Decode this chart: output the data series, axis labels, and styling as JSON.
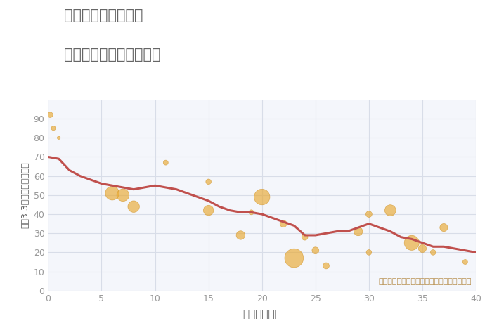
{
  "title_line1": "兵庫県赤穂市尾崎の",
  "title_line2": "築年数別中古戸建て価格",
  "xlabel": "築年数（年）",
  "ylabel": "坪（3.3㎡）単価（万円）",
  "background_color": "#ffffff",
  "plot_bg_color": "#f4f6fb",
  "grid_color": "#d8dde8",
  "title_color": "#666666",
  "annotation_text": "円の大きさは、取引のあった物件面積を示す",
  "annotation_color": "#b89050",
  "xlim": [
    0,
    40
  ],
  "ylim": [
    0,
    100
  ],
  "xticks": [
    0,
    5,
    10,
    15,
    20,
    25,
    30,
    35,
    40
  ],
  "yticks": [
    0,
    10,
    20,
    30,
    40,
    50,
    60,
    70,
    80,
    90
  ],
  "line_color": "#c0504d",
  "line_width": 2.2,
  "bubble_color": "#e8a830",
  "bubble_alpha": 0.65,
  "bubble_edge_color": "#d09020",
  "scatter_x": [
    0.2,
    0.5,
    1.0,
    6,
    7,
    8,
    11,
    15,
    15,
    18,
    19,
    20,
    22,
    23,
    24,
    25,
    26,
    29,
    30,
    30,
    32,
    34,
    35,
    36,
    37,
    39
  ],
  "scatter_y": [
    92,
    85,
    80,
    51,
    50,
    44,
    67,
    57,
    42,
    29,
    41,
    49,
    35,
    17,
    28,
    21,
    13,
    31,
    40,
    20,
    42,
    25,
    22,
    20,
    33,
    15
  ],
  "scatter_size": [
    30,
    20,
    10,
    200,
    160,
    140,
    25,
    30,
    110,
    80,
    25,
    260,
    50,
    370,
    40,
    50,
    40,
    80,
    40,
    30,
    130,
    230,
    65,
    30,
    65,
    25
  ],
  "line_x": [
    0,
    1,
    2,
    3,
    4,
    5,
    6,
    7,
    8,
    9,
    10,
    11,
    12,
    13,
    14,
    15,
    16,
    17,
    18,
    19,
    20,
    21,
    22,
    23,
    24,
    25,
    26,
    27,
    28,
    29,
    30,
    31,
    32,
    33,
    34,
    35,
    36,
    37,
    38,
    39,
    40
  ],
  "line_y": [
    70,
    69,
    63,
    60,
    58,
    56,
    55,
    54,
    53,
    54,
    55,
    54,
    53,
    51,
    49,
    47,
    44,
    42,
    41,
    41,
    40,
    38,
    36,
    34,
    29,
    29,
    30,
    31,
    31,
    33,
    35,
    33,
    31,
    28,
    27,
    25,
    23,
    23,
    22,
    21,
    20
  ]
}
